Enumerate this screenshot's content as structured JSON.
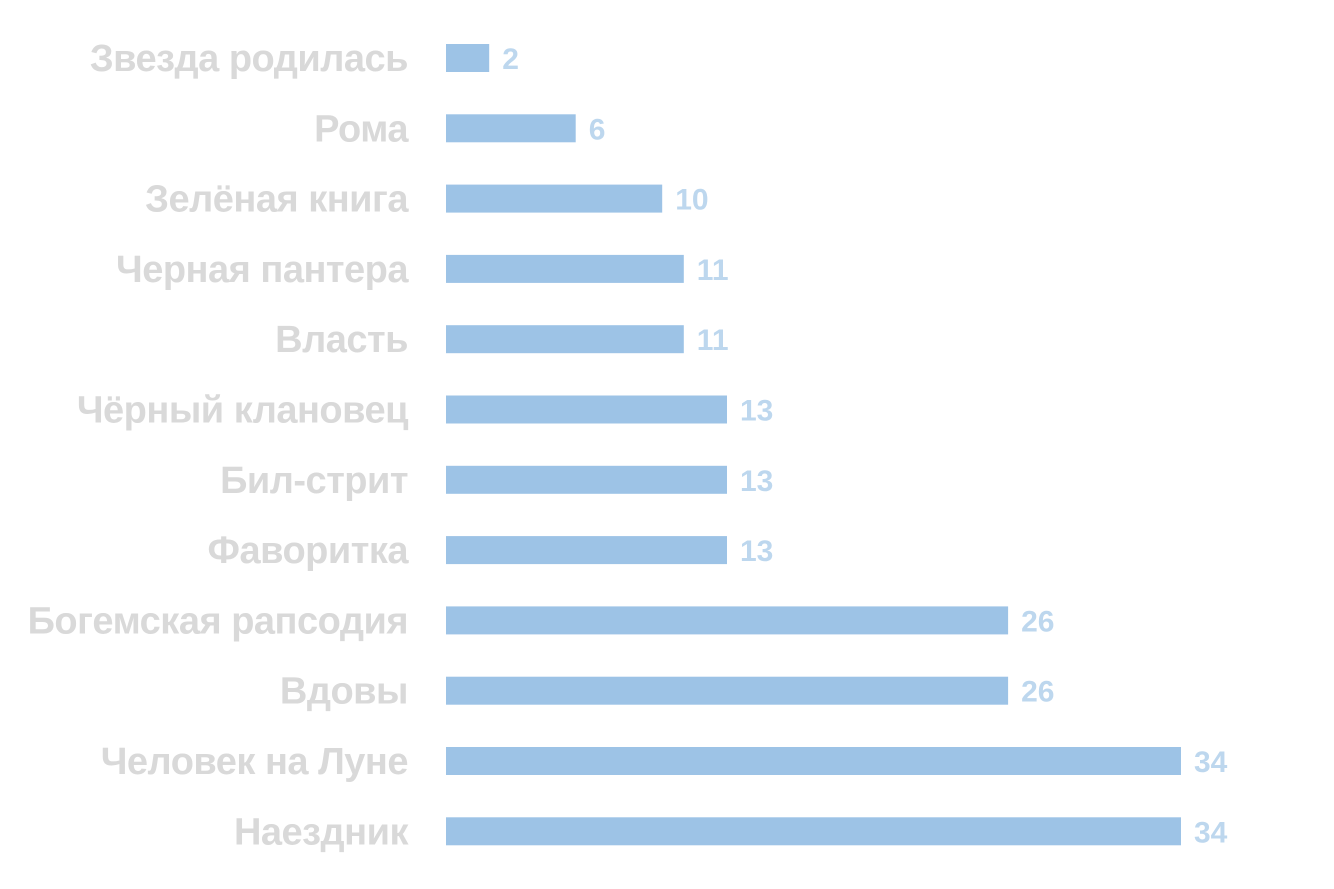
{
  "chart_data": {
    "type": "bar",
    "orientation": "horizontal",
    "title": "",
    "xlabel": "",
    "ylabel": "",
    "categories": [
      "Звезда родилась",
      "Рома",
      "Зелёная книга",
      "Черная пантера",
      "Власть",
      "Чёрный клановец",
      "Бил-стрит",
      "Фаворитка",
      "Богемская рапсодия",
      "Вдовы",
      "Человек на Луне",
      "Наездник"
    ],
    "values": [
      2,
      6,
      10,
      11,
      11,
      13,
      13,
      13,
      26,
      26,
      34,
      34
    ],
    "xlim": [
      0,
      34
    ],
    "grid": false,
    "legend": "none",
    "data_labels": true,
    "colors": {
      "bar": "#9dc3e6",
      "category_label": "#d9d9d9",
      "value_label": "#bdd7ee",
      "background": "#ffffff"
    }
  }
}
